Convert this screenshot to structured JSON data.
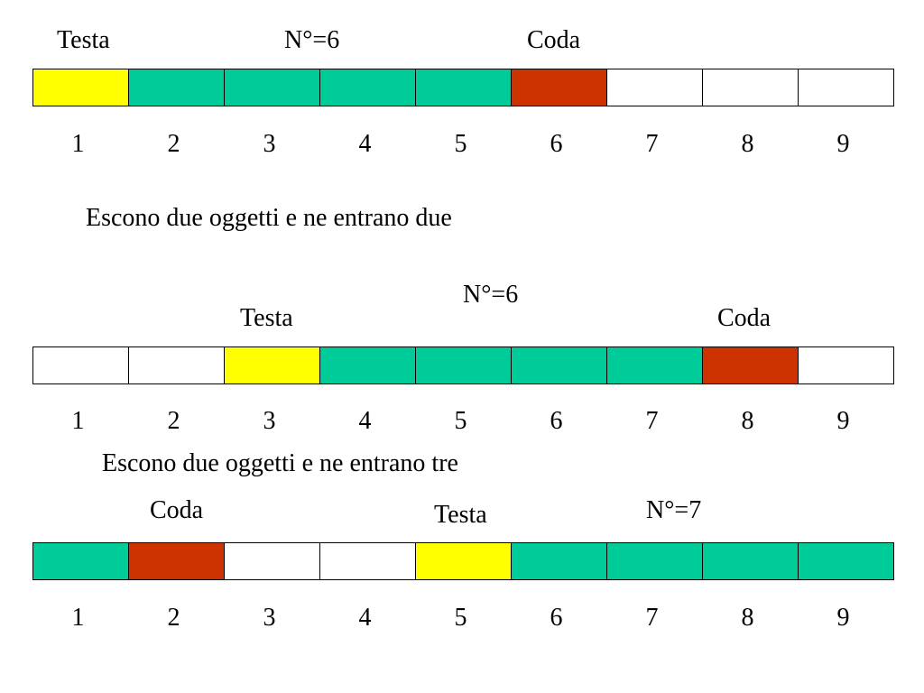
{
  "colors": {
    "testa": "#ffff00",
    "item": "#00cc99",
    "coda": "#cc3300",
    "empty": "#ffffff"
  },
  "cell_numbers": [
    "1",
    "2",
    "3",
    "4",
    "5",
    "6",
    "7",
    "8",
    "9"
  ],
  "queue1": {
    "testa_label": "Testa",
    "count_label": "N°=6",
    "coda_label": "Coda",
    "cells": [
      "testa",
      "item",
      "item",
      "item",
      "item",
      "coda",
      "empty",
      "empty",
      "empty"
    ]
  },
  "caption1": "Escono due oggetti e ne entrano due",
  "queue2": {
    "testa_label": "Testa",
    "count_label": "N°=6",
    "coda_label": "Coda",
    "cells": [
      "empty",
      "empty",
      "testa",
      "item",
      "item",
      "item",
      "item",
      "coda",
      "empty"
    ]
  },
  "caption2": "Escono due oggetti e ne entrano tre",
  "queue3": {
    "coda_label": "Coda",
    "testa_label": "Testa",
    "count_label": "N°=7",
    "cells": [
      "item",
      "coda",
      "empty",
      "empty",
      "testa",
      "item",
      "item",
      "item",
      "item"
    ]
  }
}
